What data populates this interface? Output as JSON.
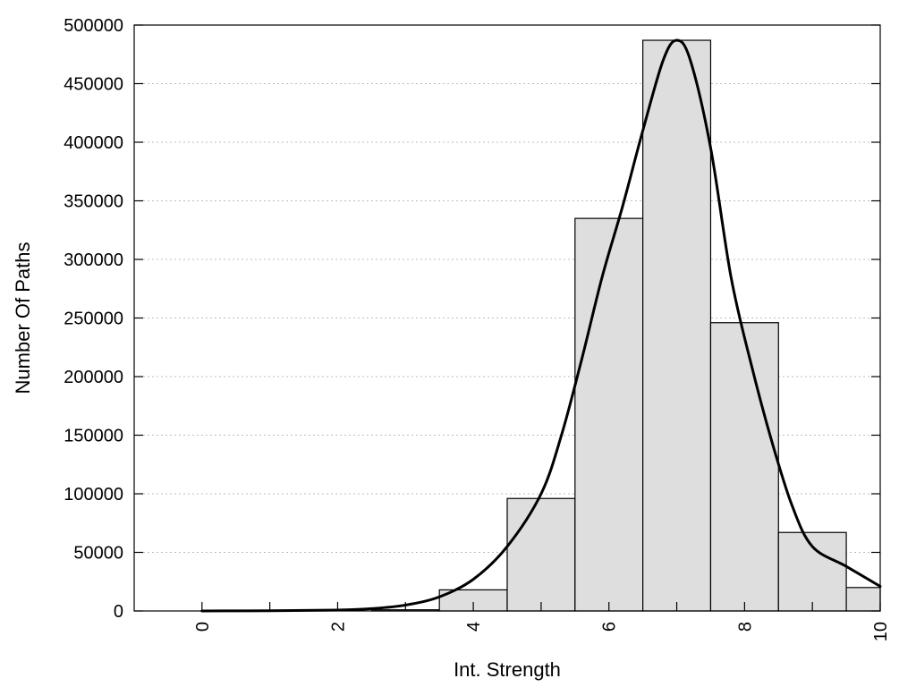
{
  "chart_data": {
    "type": "bar",
    "title": "",
    "xlabel": "Int. Strength",
    "ylabel": "Number Of Paths",
    "xlim": [
      -1,
      10
    ],
    "ylim": [
      0,
      500000
    ],
    "grid": "horizontal-dotted",
    "bin_width": 1,
    "bars": [
      {
        "x": 0,
        "value": 0
      },
      {
        "x": 1,
        "value": 0
      },
      {
        "x": 2,
        "value": 0
      },
      {
        "x": 3,
        "value": 1000
      },
      {
        "x": 4,
        "value": 18000
      },
      {
        "x": 5,
        "value": 96000
      },
      {
        "x": 6,
        "value": 335000
      },
      {
        "x": 7,
        "value": 487000
      },
      {
        "x": 8,
        "value": 246000
      },
      {
        "x": 9,
        "value": 67000
      },
      {
        "x": 10,
        "value": 20000
      }
    ],
    "curve": {
      "x": [
        0,
        1,
        2,
        2.5,
        3,
        3.5,
        4,
        4.5,
        5,
        5.3,
        5.6,
        5.9,
        6.2,
        6.5,
        6.8,
        7,
        7.2,
        7.5,
        7.8,
        8.1,
        8.4,
        8.7,
        9,
        9.5,
        10
      ],
      "y": [
        0,
        200,
        800,
        2000,
        5000,
        12000,
        27000,
        55000,
        100000,
        150000,
        215000,
        285000,
        345000,
        410000,
        470000,
        487000,
        470000,
        395000,
        285000,
        210000,
        145000,
        90000,
        55000,
        38000,
        21000
      ]
    },
    "y_ticks": [
      0,
      50000,
      100000,
      150000,
      200000,
      250000,
      300000,
      350000,
      400000,
      450000,
      500000
    ],
    "x_ticks": [
      0,
      2,
      4,
      6,
      8,
      10
    ],
    "colors": {
      "bar_fill": "#dedede",
      "bar_stroke": "#000000",
      "curve": "#000000"
    }
  }
}
